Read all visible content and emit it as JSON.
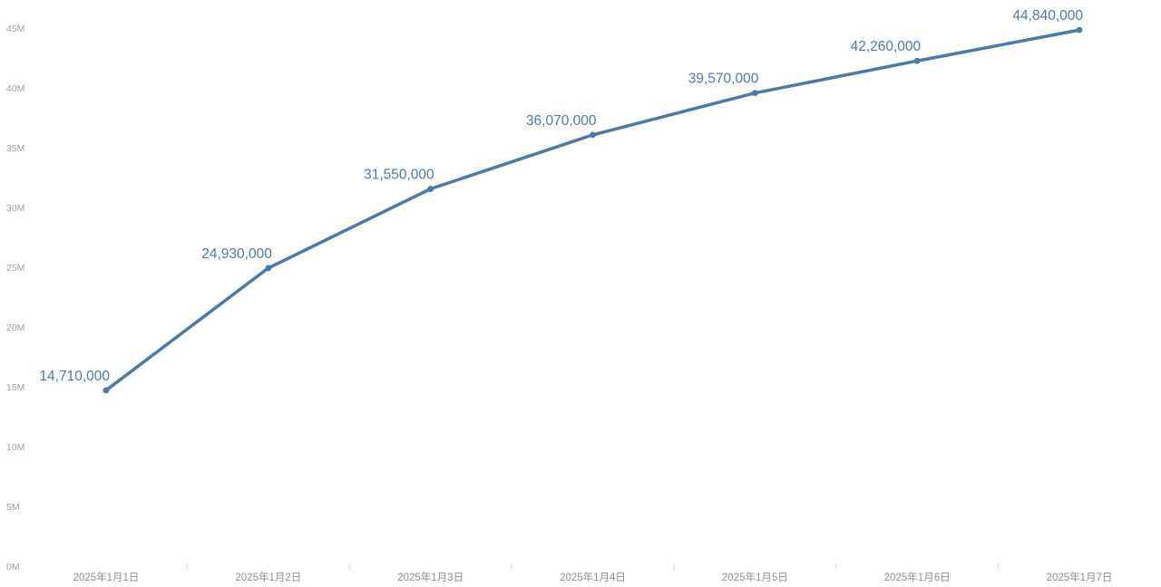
{
  "page": {
    "background": "#ffffff"
  },
  "chart_data": {
    "type": "line",
    "title": "",
    "xlabel": "",
    "ylabel": "",
    "categories": [
      "2025年1月1日",
      "2025年1月2日",
      "2025年1月3日",
      "2025年1月4日",
      "2025年1月5日",
      "2025年1月6日",
      "2025年1月7日"
    ],
    "series": [
      {
        "name": "cumulative-value",
        "values": [
          14710000,
          24930000,
          31550000,
          36070000,
          39570000,
          42260000,
          44840000
        ],
        "point_labels": [
          "14,710,000",
          "24,930,000",
          "31,550,000",
          "36,070,000",
          "39,570,000",
          "42,260,000",
          "44,840,000"
        ]
      }
    ],
    "ylim": [
      0,
      45000000
    ],
    "y_tick_step": 5000000,
    "y_tick_labels": [
      "0M",
      "5M",
      "10M",
      "15M",
      "20M",
      "25M",
      "30M",
      "35M",
      "40M",
      "45M"
    ],
    "grid": false,
    "legend_position": "none",
    "colors": {
      "line": "#4e79a7",
      "marker": "#4e79a7",
      "point_label": "#4e79a7",
      "y_axis_text": "#a0a0a0",
      "x_axis_text": "#8f8f8f",
      "tick_mark": "#d8d8d8",
      "background": "#ffffff"
    }
  }
}
